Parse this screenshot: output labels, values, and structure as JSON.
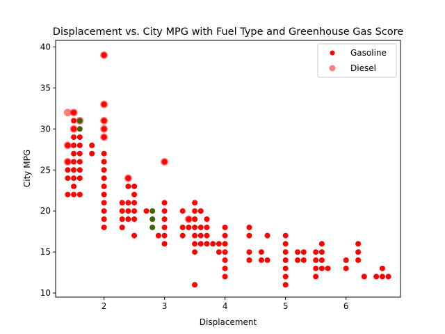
{
  "chart_data": {
    "type": "scatter",
    "title": "Displacement vs. City MPG with Fuel Type and Greenhouse Gas Score",
    "xlabel": "Displacement",
    "ylabel": "City MPG",
    "xlim": [
      1.2,
      6.9
    ],
    "ylim": [
      9.5,
      40.8
    ],
    "xticks": [
      "2",
      "3",
      "4",
      "5",
      "6"
    ],
    "yticks": [
      "10",
      "15",
      "20",
      "25",
      "30",
      "35",
      "40"
    ],
    "grid": false,
    "legend_position": "top-right",
    "series": [
      {
        "name": "Gasoline",
        "color": "#ff0000",
        "points": [
          [
            1.4,
            22
          ],
          [
            1.4,
            24
          ],
          [
            1.4,
            25
          ],
          [
            1.4,
            26
          ],
          [
            1.4,
            28
          ],
          [
            1.5,
            22
          ],
          [
            1.5,
            23
          ],
          [
            1.5,
            24
          ],
          [
            1.5,
            25
          ],
          [
            1.5,
            26
          ],
          [
            1.5,
            27
          ],
          [
            1.5,
            28
          ],
          [
            1.5,
            29
          ],
          [
            1.5,
            30
          ],
          [
            1.5,
            31
          ],
          [
            1.5,
            32
          ],
          [
            1.6,
            22
          ],
          [
            1.6,
            24
          ],
          [
            1.6,
            25
          ],
          [
            1.6,
            26
          ],
          [
            1.6,
            27
          ],
          [
            1.6,
            28
          ],
          [
            1.6,
            29
          ],
          [
            1.6,
            30
          ],
          [
            1.6,
            31
          ],
          [
            1.8,
            27
          ],
          [
            1.8,
            28
          ],
          [
            2.0,
            18
          ],
          [
            2.0,
            19
          ],
          [
            2.0,
            20
          ],
          [
            2.0,
            21
          ],
          [
            2.0,
            22
          ],
          [
            2.0,
            23
          ],
          [
            2.0,
            24
          ],
          [
            2.0,
            25
          ],
          [
            2.0,
            26
          ],
          [
            2.0,
            27
          ],
          [
            2.0,
            29
          ],
          [
            2.0,
            30
          ],
          [
            2.0,
            31
          ],
          [
            2.0,
            33
          ],
          [
            2.0,
            39
          ],
          [
            2.3,
            18
          ],
          [
            2.3,
            19
          ],
          [
            2.3,
            20
          ],
          [
            2.3,
            21
          ],
          [
            2.4,
            19
          ],
          [
            2.4,
            20
          ],
          [
            2.4,
            21
          ],
          [
            2.4,
            23
          ],
          [
            2.4,
            24
          ],
          [
            2.5,
            17
          ],
          [
            2.5,
            19
          ],
          [
            2.5,
            20
          ],
          [
            2.5,
            21
          ],
          [
            2.5,
            22
          ],
          [
            2.5,
            23
          ],
          [
            2.7,
            20
          ],
          [
            2.8,
            18
          ],
          [
            2.8,
            19
          ],
          [
            2.8,
            20
          ],
          [
            2.9,
            17
          ],
          [
            3.0,
            16
          ],
          [
            3.0,
            17
          ],
          [
            3.0,
            18
          ],
          [
            3.0,
            19
          ],
          [
            3.0,
            20
          ],
          [
            3.0,
            21
          ],
          [
            3.0,
            26
          ],
          [
            3.3,
            17
          ],
          [
            3.3,
            18
          ],
          [
            3.3,
            20
          ],
          [
            3.4,
            18
          ],
          [
            3.4,
            19
          ],
          [
            3.5,
            11
          ],
          [
            3.5,
            15
          ],
          [
            3.5,
            16
          ],
          [
            3.5,
            17
          ],
          [
            3.5,
            18
          ],
          [
            3.5,
            19
          ],
          [
            3.5,
            20
          ],
          [
            3.5,
            21
          ],
          [
            3.6,
            16
          ],
          [
            3.6,
            17
          ],
          [
            3.6,
            18
          ],
          [
            3.6,
            20
          ],
          [
            3.7,
            16
          ],
          [
            3.7,
            17
          ],
          [
            3.7,
            18
          ],
          [
            3.7,
            19
          ],
          [
            3.8,
            16
          ],
          [
            3.9,
            15
          ],
          [
            3.9,
            16
          ],
          [
            4.0,
            12
          ],
          [
            4.0,
            13
          ],
          [
            4.0,
            14
          ],
          [
            4.0,
            15
          ],
          [
            4.0,
            16
          ],
          [
            4.0,
            17
          ],
          [
            4.0,
            18
          ],
          [
            4.4,
            14
          ],
          [
            4.4,
            15
          ],
          [
            4.4,
            17
          ],
          [
            4.4,
            18
          ],
          [
            4.6,
            14
          ],
          [
            4.6,
            15
          ],
          [
            4.7,
            14
          ],
          [
            4.7,
            17
          ],
          [
            5.0,
            11
          ],
          [
            5.0,
            12
          ],
          [
            5.0,
            13
          ],
          [
            5.0,
            14
          ],
          [
            5.0,
            15
          ],
          [
            5.0,
            16
          ],
          [
            5.0,
            17
          ],
          [
            5.2,
            14
          ],
          [
            5.2,
            15
          ],
          [
            5.3,
            14
          ],
          [
            5.3,
            15
          ],
          [
            5.5,
            12
          ],
          [
            5.5,
            13
          ],
          [
            5.5,
            14
          ],
          [
            5.5,
            15
          ],
          [
            5.6,
            13
          ],
          [
            5.6,
            14
          ],
          [
            5.6,
            15
          ],
          [
            5.6,
            16
          ],
          [
            5.7,
            13
          ],
          [
            6.0,
            13
          ],
          [
            6.0,
            14
          ],
          [
            6.2,
            14
          ],
          [
            6.2,
            15
          ],
          [
            6.2,
            16
          ],
          [
            6.3,
            12
          ],
          [
            6.5,
            12
          ],
          [
            6.6,
            12
          ],
          [
            6.6,
            13
          ],
          [
            6.7,
            12
          ]
        ]
      },
      {
        "name": "Diesel",
        "color": "#ff0000",
        "opacity": 0.5,
        "points": [
          [
            1.4,
            32
          ],
          [
            1.4,
            28
          ],
          [
            1.4,
            26
          ],
          [
            1.5,
            32
          ],
          [
            1.5,
            30
          ],
          [
            1.6,
            31
          ],
          [
            2.0,
            39
          ],
          [
            2.0,
            33
          ],
          [
            2.0,
            31
          ],
          [
            2.0,
            30
          ],
          [
            2.0,
            29
          ],
          [
            2.4,
            24
          ],
          [
            3.0,
            26
          ],
          [
            3.4,
            19
          ]
        ]
      },
      {
        "name": "",
        "color": "#2e6b00",
        "points": [
          [
            1.6,
            30
          ],
          [
            1.6,
            31
          ],
          [
            2.8,
            18
          ],
          [
            2.8,
            19
          ],
          [
            2.8,
            20
          ]
        ]
      }
    ]
  }
}
